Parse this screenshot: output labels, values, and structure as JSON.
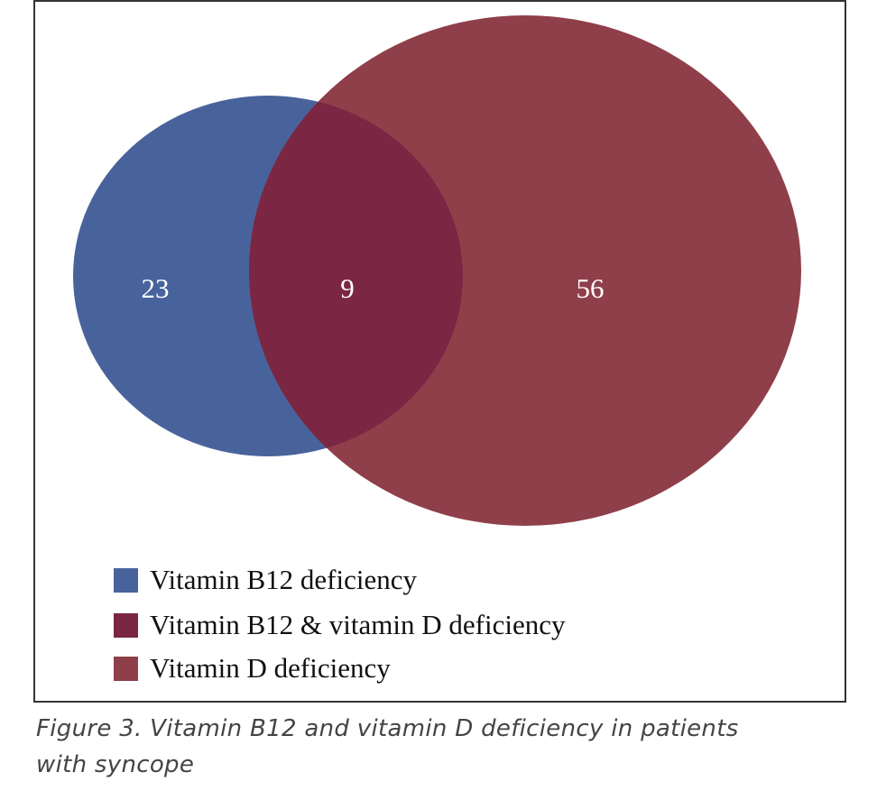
{
  "chart_data": {
    "type": "venn",
    "sets": [
      {
        "name": "Vitamin B12 deficiency",
        "only_count": "23",
        "color": "#48639c"
      },
      {
        "name": "Vitamin D deficiency",
        "only_count": "56",
        "color": "#8f3f4a"
      }
    ],
    "intersection": {
      "name": "Vitamin B12 & vitamin D deficiency",
      "count": "9",
      "color": "#7b2642"
    },
    "legend": [
      {
        "label": "Vitamin B12 deficiency",
        "color": "#48639c"
      },
      {
        "label": "Vitamin B12 & vitamin D deficiency",
        "color": "#7b2642"
      },
      {
        "label": "Vitamin D deficiency",
        "color": "#8f3f4a"
      }
    ],
    "legend_position": "bottom-left"
  },
  "caption": {
    "line1": "Figure 3. Vitamin B12 and vitamin D deficiency in patients",
    "line2": "with syncope"
  }
}
